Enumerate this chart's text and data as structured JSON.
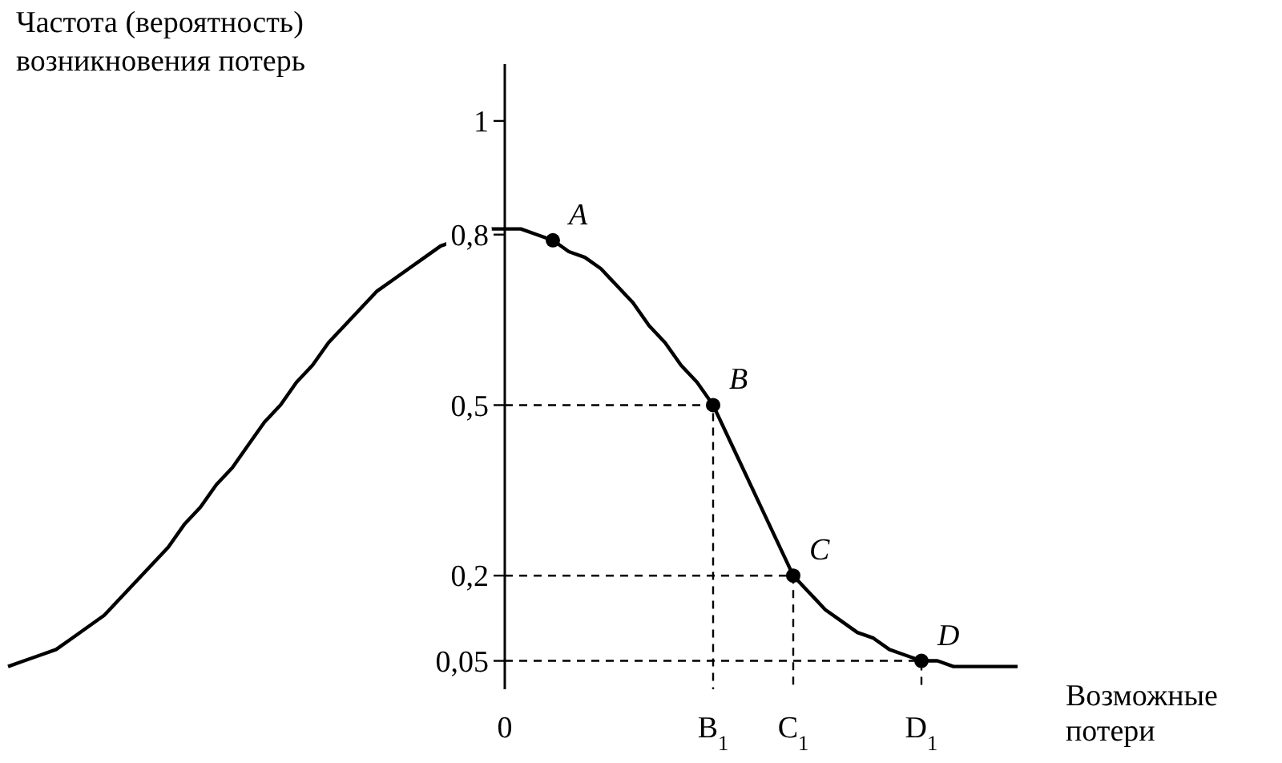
{
  "chart_data": {
    "type": "line",
    "ylabel": "Частота (вероятность)\nвозникновения потерь",
    "xlabel": "Возможные\nпотери",
    "categories": [
      null,
      null,
      null,
      null,
      null,
      null,
      null,
      null,
      null,
      null,
      null,
      null,
      null,
      null,
      null,
      null,
      null,
      null,
      null,
      null,
      null,
      null,
      null,
      null,
      null,
      null,
      null,
      null,
      null,
      null,
      null,
      "0",
      null,
      null,
      null,
      null,
      null,
      null,
      null,
      null,
      null,
      null,
      null,
      null,
      "B$_{1}$",
      null,
      null,
      null,
      null,
      "C$_{1}$",
      null,
      null,
      null,
      null,
      null,
      null,
      null,
      "D$_{1}$",
      null,
      null,
      null,
      null,
      null,
      null
    ],
    "ylim": [
      0,
      1.1
    ],
    "yticks": [
      {
        "value": 0.05,
        "label": "0,05"
      },
      {
        "value": 0.2,
        "label": "0,2"
      },
      {
        "value": 0.5,
        "label": "0,5"
      },
      {
        "value": 0.8,
        "label": "0,8"
      },
      {
        "value": 1,
        "label": "1"
      }
    ],
    "grid": false,
    "series": [
      {
        "color": "#000000",
        "line_style": "solid",
        "values": [
          0.04,
          0.05,
          0.06,
          0.07,
          0.09,
          0.11,
          0.13,
          0.16,
          0.19,
          0.22,
          0.25,
          0.29,
          0.32,
          0.36,
          0.39,
          0.43,
          0.47,
          0.5,
          0.54,
          0.57,
          0.61,
          0.64,
          0.67,
          0.7,
          0.72,
          0.74,
          0.76,
          0.78,
          0.79,
          0.8,
          0.81,
          0.81,
          0.81,
          0.8,
          0.79,
          0.77,
          0.76,
          0.74,
          0.71,
          0.68,
          0.64,
          0.61,
          0.57,
          0.54,
          0.5,
          0.44,
          0.38,
          0.32,
          0.26,
          0.2,
          0.17,
          0.14,
          0.12,
          0.1,
          0.09,
          0.07,
          0.06,
          0.05,
          0.05,
          0.04,
          0.04,
          0.04,
          0.04,
          0.04
        ]
      },
      {
        "type": "scatter",
        "color": "#000000",
        "marker": "circle",
        "values": [
          null,
          null,
          null,
          null,
          null,
          null,
          null,
          null,
          null,
          null,
          null,
          null,
          null,
          null,
          null,
          null,
          null,
          null,
          null,
          null,
          null,
          null,
          null,
          null,
          null,
          null,
          null,
          null,
          null,
          null,
          null,
          null,
          null,
          null,
          0.79,
          null,
          null,
          null,
          null,
          null,
          null,
          null,
          null,
          null,
          null,
          null,
          null,
          null,
          null,
          null,
          null,
          null,
          null,
          null,
          null,
          null,
          null,
          null,
          null,
          null,
          null,
          null,
          null,
          null
        ]
      },
      {
        "type": "scatter",
        "color": "#000000",
        "marker": "circle",
        "line_style": "dashed",
        "values": [
          null,
          null,
          null,
          null,
          null,
          null,
          null,
          null,
          null,
          null,
          null,
          null,
          null,
          null,
          null,
          null,
          null,
          null,
          null,
          null,
          null,
          null,
          null,
          null,
          null,
          null,
          null,
          null,
          null,
          null,
          null,
          null,
          null,
          null,
          null,
          null,
          null,
          null,
          null,
          null,
          null,
          null,
          null,
          null,
          0.5,
          null,
          null,
          null,
          null,
          0.2,
          null,
          null,
          null,
          null,
          null,
          null,
          null,
          0.05,
          null,
          null,
          null,
          null,
          null,
          null
        ]
      }
    ],
    "annotations": [
      "A",
      "B",
      "C",
      "D"
    ]
  }
}
